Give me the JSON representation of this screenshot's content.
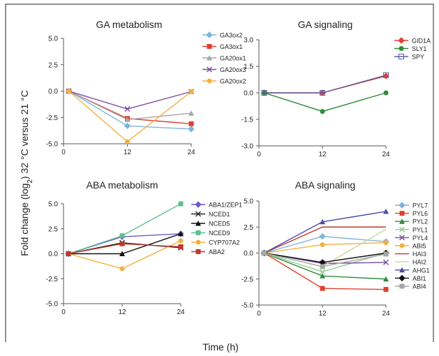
{
  "figure": {
    "ylabel": "Fold change (log",
    "ylabel_sub": "2",
    "ylabel_rest": ") 32 °C versus 21 °C",
    "xlabel": "Time (h)"
  },
  "chart_data": [
    {
      "type": "line",
      "title": "GA metabolism",
      "x": [
        1,
        12,
        24
      ],
      "xticks": [
        "0",
        "12",
        "24"
      ],
      "ylim": [
        -5.0,
        5.0
      ],
      "yticks": [
        "5.0",
        "2.5",
        "0.0",
        "-2.5",
        "-5.0"
      ],
      "series": [
        {
          "name": "GA3ox2",
          "color": "#7fb3e0",
          "marker": "diamond",
          "values": [
            0,
            -3.3,
            -3.6
          ]
        },
        {
          "name": "GA3ox1",
          "color": "#e0402f",
          "marker": "square",
          "values": [
            0,
            -2.6,
            -3.1
          ]
        },
        {
          "name": "GA20ox1",
          "color": "#a6a6a6",
          "marker": "triangle",
          "values": [
            0,
            -2.7,
            -2.1
          ]
        },
        {
          "name": "GA20ox3",
          "color": "#7a4a9e",
          "marker": "x",
          "values": [
            0,
            -1.7,
            -0.05
          ]
        },
        {
          "name": "GA20ox2",
          "color": "#f4b03e",
          "marker": "circle",
          "values": [
            0,
            -4.8,
            -0.05
          ]
        }
      ]
    },
    {
      "type": "line",
      "title": "GA signaling",
      "x": [
        1,
        12,
        24
      ],
      "xticks": [
        "0",
        "12",
        "24"
      ],
      "ylim": [
        -3.0,
        3.0
      ],
      "yticks": [
        "3.0",
        "1.5",
        "0.0",
        "-1.5",
        "-3.0"
      ],
      "series": [
        {
          "name": "GID1A",
          "color": "#e0402f",
          "marker": "diamond",
          "values": [
            0,
            0,
            0.95
          ]
        },
        {
          "name": "SLY1",
          "color": "#2e8b3a",
          "marker": "circle",
          "values": [
            0,
            -1.05,
            0
          ]
        },
        {
          "name": "SPY",
          "color": "#5b5ea6",
          "marker": "square-open",
          "values": [
            0,
            0,
            1.0
          ]
        }
      ]
    },
    {
      "type": "line",
      "title": "ABA metabolism",
      "x": [
        1,
        12,
        24
      ],
      "xticks": [
        "0",
        "12",
        "24"
      ],
      "ylim": [
        -5.0,
        5.0
      ],
      "yticks": [
        "5.0",
        "2.5",
        "0.0",
        "-2.5",
        "-5.0"
      ],
      "series": [
        {
          "name": "ABA1/ZEP1",
          "color": "#6a5acd",
          "marker": "diamond",
          "values": [
            0,
            1.7,
            2.0
          ]
        },
        {
          "name": "NCED1",
          "color": "#222222",
          "marker": "x",
          "values": [
            0,
            1.1,
            0.6
          ]
        },
        {
          "name": "NCED5",
          "color": "#111111",
          "marker": "triangle",
          "values": [
            0,
            0,
            2.0
          ]
        },
        {
          "name": "NCED9",
          "color": "#5fbf8f",
          "marker": "square",
          "values": [
            0,
            1.8,
            5.0
          ]
        },
        {
          "name": "CYP707A2",
          "color": "#f4b03e",
          "marker": "circle",
          "values": [
            0,
            -1.5,
            1.3
          ]
        },
        {
          "name": "ABA2",
          "color": "#c0392b",
          "marker": "square",
          "values": [
            0,
            1.0,
            0.7
          ]
        }
      ]
    },
    {
      "type": "line",
      "title": "ABA signaling",
      "x": [
        1,
        12,
        24
      ],
      "xticks": [
        "0",
        "12",
        "24"
      ],
      "ylim": [
        -5.0,
        5.0
      ],
      "yticks": [
        "5.0",
        "2.5",
        "0.0",
        "-2.5",
        "-5.0"
      ],
      "series": [
        {
          "name": "PYL7",
          "color": "#7fb3e0",
          "marker": "diamond",
          "values": [
            0,
            1.6,
            1.1
          ]
        },
        {
          "name": "PYL6",
          "color": "#e0402f",
          "marker": "square",
          "values": [
            0,
            -3.4,
            -3.5
          ]
        },
        {
          "name": "PYL2",
          "color": "#2e8b3a",
          "marker": "triangle",
          "values": [
            0,
            -2.2,
            -2.5
          ]
        },
        {
          "name": "PYL1",
          "color": "#8fd18a",
          "marker": "x",
          "values": [
            0,
            -1.8,
            0
          ]
        },
        {
          "name": "PYL4",
          "color": "#7a4a9e",
          "marker": "x",
          "values": [
            0,
            -1.0,
            -0.9
          ]
        },
        {
          "name": "ABI5",
          "color": "#f4b03e",
          "marker": "circle",
          "values": [
            0,
            0.8,
            1.0
          ]
        },
        {
          "name": "HAI3",
          "color": "#c0392b",
          "marker": "none",
          "values": [
            0,
            2.5,
            2.5
          ]
        },
        {
          "name": "HAI2",
          "color": "#c6d79a",
          "marker": "none",
          "values": [
            0,
            -1.3,
            2.3
          ]
        },
        {
          "name": "AHG1",
          "color": "#4b4ba8",
          "marker": "triangle",
          "values": [
            0,
            3.0,
            4.0
          ]
        },
        {
          "name": "ABI1",
          "color": "#111111",
          "marker": "diamond",
          "values": [
            0,
            -0.9,
            0
          ]
        },
        {
          "name": "ABI4",
          "color": "#a6a6a6",
          "marker": "square",
          "values": [
            0,
            -1.3,
            -0.1
          ]
        }
      ]
    }
  ]
}
